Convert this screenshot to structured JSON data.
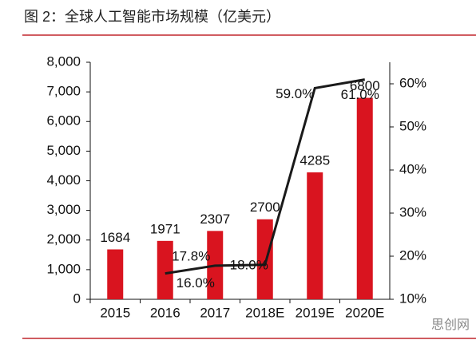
{
  "chart_data": {
    "type": "bar-line",
    "title": "图 2：全球人工智能市场规模（亿美元）",
    "watermark": "思创网",
    "categories": [
      "2015",
      "2016",
      "2017",
      "2018E",
      "2019E",
      "2020E"
    ],
    "series": [
      {
        "type": "bar",
        "color": "#d9141f",
        "values": [
          1684,
          1971,
          2307,
          2700,
          4285,
          6800
        ]
      },
      {
        "type": "line",
        "axis": "y2",
        "color": "#1a1a1a",
        "values": [
          null,
          16.0,
          17.8,
          18.0,
          59.0,
          61.0
        ],
        "value_labels": [
          null,
          "16.0%",
          "17.8%",
          "18.0%",
          "59.0%",
          "61.0%"
        ]
      }
    ],
    "ylim": [
      0,
      8000
    ],
    "yticks": [
      0,
      {
        "value": 1000,
        "label": "1,000"
      },
      {
        "value": 2000,
        "label": "2,000"
      },
      {
        "value": 3000,
        "label": "3,000"
      },
      {
        "value": 4000,
        "label": "4,000"
      },
      {
        "value": 5000,
        "label": "5,000"
      },
      {
        "value": 6000,
        "label": "6,000"
      },
      {
        "value": 7000,
        "label": "7,000"
      },
      {
        "value": 8000,
        "label": "8,000"
      }
    ],
    "y2lim": [
      10,
      65
    ],
    "y2ticks": [
      {
        "value": 10,
        "label": "10%"
      },
      {
        "value": 20,
        "label": "20%"
      },
      {
        "value": 30,
        "label": "30%"
      },
      {
        "value": 40,
        "label": "40%"
      },
      {
        "value": 50,
        "label": "50%"
      },
      {
        "value": 60,
        "label": "60%"
      }
    ]
  }
}
